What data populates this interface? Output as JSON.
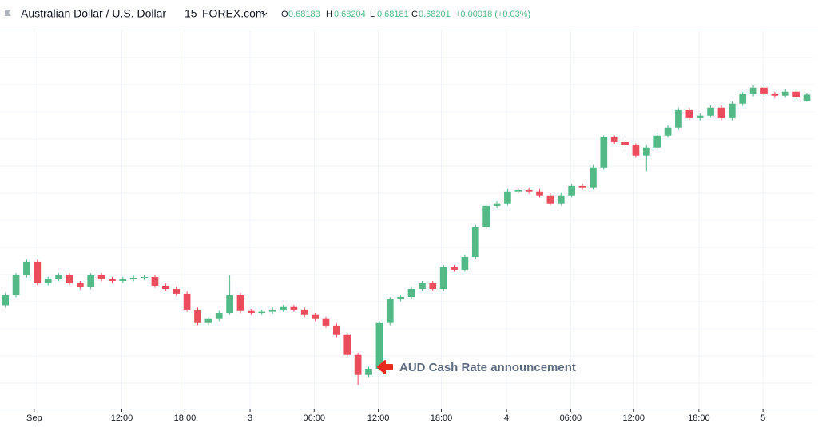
{
  "chart_data": {
    "type": "candlestick",
    "title": "Australian Dollar / U.S. Dollar",
    "interval": "15",
    "source": "FOREX.com",
    "legend_labels": [
      "O",
      "H",
      "L",
      "C"
    ],
    "change_label": "+0.00018 (+0.03%)",
    "annotation": "AUD Cash Rate announcement",
    "up_color": "#53b987",
    "down_color": "#eb4d5c",
    "grid": true,
    "xlim": [
      -0.5,
      75.6
    ],
    "ylim": [
      0.67335,
      0.6838
    ],
    "xticks": [
      {
        "value": 2.7,
        "label": "Sep"
      },
      {
        "value": 10.9,
        "label": "12:00"
      },
      {
        "value": 16.8,
        "label": "18:00"
      },
      {
        "value": 22.9,
        "label": "3"
      },
      {
        "value": 28.9,
        "label": "06:00"
      },
      {
        "value": 34.9,
        "label": "12:00"
      },
      {
        "value": 40.8,
        "label": "18:00"
      },
      {
        "value": 46.9,
        "label": "4"
      },
      {
        "value": 52.9,
        "label": "06:00"
      },
      {
        "value": 58.8,
        "label": "12:00"
      },
      {
        "value": 64.9,
        "label": "18:00"
      },
      {
        "value": 70.9,
        "label": "5"
      }
    ],
    "ohlc": [
      [
        0.6762,
        0.67654,
        0.67614,
        0.67648
      ],
      [
        0.67648,
        0.67709,
        0.67642,
        0.67703
      ],
      [
        0.67703,
        0.67746,
        0.67697,
        0.6774
      ],
      [
        0.6774,
        0.67746,
        0.67675,
        0.67681
      ],
      [
        0.67681,
        0.67698,
        0.67675,
        0.67692
      ],
      [
        0.67692,
        0.67709,
        0.67686,
        0.67703
      ],
      [
        0.67703,
        0.67709,
        0.67675,
        0.67681
      ],
      [
        0.67681,
        0.67687,
        0.67664,
        0.6767
      ],
      [
        0.6767,
        0.67709,
        0.67664,
        0.67703
      ],
      [
        0.67703,
        0.67709,
        0.67686,
        0.67692
      ],
      [
        0.67692,
        0.67698,
        0.67681,
        0.67687
      ],
      [
        0.67687,
        0.67698,
        0.67681,
        0.67692
      ],
      [
        0.67692,
        0.67702,
        0.67686,
        0.67696
      ],
      [
        0.67696,
        0.67704,
        0.6769,
        0.67698
      ],
      [
        0.67698,
        0.67704,
        0.67668,
        0.67674
      ],
      [
        0.67674,
        0.6768,
        0.67659,
        0.67665
      ],
      [
        0.67665,
        0.67671,
        0.67646,
        0.67652
      ],
      [
        0.67652,
        0.67658,
        0.67602,
        0.67608
      ],
      [
        0.67608,
        0.67614,
        0.67565,
        0.67571
      ],
      [
        0.67571,
        0.67588,
        0.67565,
        0.67582
      ],
      [
        0.67582,
        0.67605,
        0.67576,
        0.67599
      ],
      [
        0.67599,
        0.67703,
        0.67593,
        0.67648
      ],
      [
        0.67648,
        0.67654,
        0.67598,
        0.67604
      ],
      [
        0.67604,
        0.6761,
        0.67593,
        0.67599
      ],
      [
        0.67599,
        0.67608,
        0.67593,
        0.67602
      ],
      [
        0.67602,
        0.67614,
        0.67596,
        0.67608
      ],
      [
        0.67608,
        0.67621,
        0.67602,
        0.67615
      ],
      [
        0.67615,
        0.67621,
        0.67602,
        0.67608
      ],
      [
        0.67608,
        0.67614,
        0.67587,
        0.67593
      ],
      [
        0.67593,
        0.67599,
        0.67576,
        0.67582
      ],
      [
        0.67582,
        0.67588,
        0.67558,
        0.67564
      ],
      [
        0.67564,
        0.6757,
        0.67532,
        0.67538
      ],
      [
        0.67538,
        0.67544,
        0.67477,
        0.67483
      ],
      [
        0.67483,
        0.67489,
        0.674,
        0.67428
      ],
      [
        0.67428,
        0.67451,
        0.67422,
        0.67445
      ],
      [
        0.67445,
        0.67577,
        0.67439,
        0.67571
      ],
      [
        0.67571,
        0.67643,
        0.67565,
        0.67637
      ],
      [
        0.67637,
        0.67649,
        0.67631,
        0.67643
      ],
      [
        0.67643,
        0.67671,
        0.67637,
        0.67665
      ],
      [
        0.67665,
        0.67687,
        0.67659,
        0.67681
      ],
      [
        0.67681,
        0.67687,
        0.67659,
        0.67665
      ],
      [
        0.67665,
        0.67731,
        0.67659,
        0.67725
      ],
      [
        0.67725,
        0.67731,
        0.67712,
        0.67718
      ],
      [
        0.67718,
        0.67759,
        0.67712,
        0.67753
      ],
      [
        0.67753,
        0.67841,
        0.67747,
        0.67835
      ],
      [
        0.67835,
        0.679,
        0.67829,
        0.67894
      ],
      [
        0.67894,
        0.67907,
        0.67888,
        0.67901
      ],
      [
        0.67901,
        0.6794,
        0.67895,
        0.67934
      ],
      [
        0.67934,
        0.67944,
        0.67928,
        0.67938
      ],
      [
        0.67938,
        0.67944,
        0.67928,
        0.67934
      ],
      [
        0.67934,
        0.6794,
        0.67917,
        0.67923
      ],
      [
        0.67923,
        0.67929,
        0.67895,
        0.67901
      ],
      [
        0.67901,
        0.67929,
        0.67895,
        0.67923
      ],
      [
        0.67923,
        0.67955,
        0.67917,
        0.67949
      ],
      [
        0.67949,
        0.67955,
        0.67939,
        0.67945
      ],
      [
        0.67945,
        0.68006,
        0.67939,
        0.68
      ],
      [
        0.68,
        0.68089,
        0.67994,
        0.68083
      ],
      [
        0.68083,
        0.68089,
        0.68064,
        0.6807
      ],
      [
        0.6807,
        0.68076,
        0.68055,
        0.68061
      ],
      [
        0.68061,
        0.68067,
        0.68027,
        0.68033
      ],
      [
        0.68033,
        0.68061,
        0.6799,
        0.68055
      ],
      [
        0.68055,
        0.68094,
        0.68049,
        0.68088
      ],
      [
        0.68088,
        0.68116,
        0.68082,
        0.6811
      ],
      [
        0.6811,
        0.68164,
        0.68104,
        0.68158
      ],
      [
        0.68158,
        0.68164,
        0.6813,
        0.68136
      ],
      [
        0.68136,
        0.68149,
        0.6813,
        0.68143
      ],
      [
        0.68143,
        0.68171,
        0.68137,
        0.68165
      ],
      [
        0.68165,
        0.68171,
        0.6813,
        0.68136
      ],
      [
        0.68136,
        0.68182,
        0.6813,
        0.68176
      ],
      [
        0.68176,
        0.68208,
        0.6817,
        0.68202
      ],
      [
        0.68202,
        0.68226,
        0.68196,
        0.6822
      ],
      [
        0.6822,
        0.68226,
        0.68196,
        0.68202
      ],
      [
        0.68202,
        0.68208,
        0.68192,
        0.68198
      ],
      [
        0.68198,
        0.68215,
        0.68192,
        0.68209
      ],
      [
        0.68209,
        0.68215,
        0.68187,
        0.68193
      ],
      [
        0.68183,
        0.68204,
        0.68181,
        0.68201
      ]
    ]
  }
}
